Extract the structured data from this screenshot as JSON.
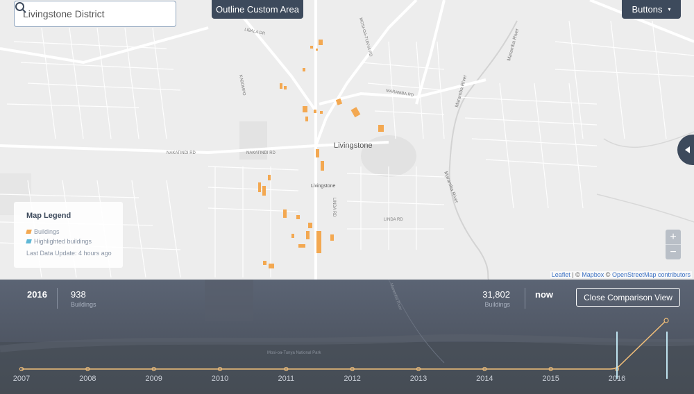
{
  "search": {
    "value": "Livingstone District"
  },
  "toolbar": {
    "outline_label": "Outline Custom Area",
    "layer_label": "Buttons",
    "layer_caret": "▾"
  },
  "map": {
    "place_labels": {
      "livingstone_big": "Livingstone",
      "livingstone_small": "Livingstone",
      "libala": "LIBALA DR",
      "mosi": "MOSI-OA-TUNYA RD",
      "maramba_rd": "MARAMBA RD",
      "maramba_river_top": "Maramba River",
      "maramba_river_mid": "Maramba River",
      "maramba_river_low": "Maramba River",
      "nakatindi_1": "NAKATINDI RD",
      "nakatindi_2": "NAKATINDI RD",
      "kabompo": "KABOMPO",
      "linda_rd_1": "LINDA RD",
      "linda_rd_2": "LINDA RD"
    },
    "colors": {
      "building": "#f3a851",
      "highlight": "#5fb7d6",
      "road": "#ffffff",
      "land": "#ededed"
    }
  },
  "legend": {
    "title": "Map Legend",
    "items": [
      {
        "label": "Buildings",
        "color": "#f3a851"
      },
      {
        "label": "Highlighted buildings",
        "color": "#5fb7d6"
      }
    ],
    "update": "Last Data Update: 4 hours ago"
  },
  "zoom": {
    "in": "+",
    "out": "−"
  },
  "attribution": {
    "leaflet": "Leaflet",
    "sep1": " | © ",
    "mapbox": "Mapbox",
    "sep2": " © ",
    "osm": "OpenStreetMap contributors"
  },
  "comparison": {
    "left_year": "2016",
    "left_count": "938",
    "left_unit": "Buildings",
    "right_count": "31,802",
    "right_unit": "Buildings",
    "right_label": "now",
    "close_label": "Close Comparison View"
  },
  "timeline": {
    "years": [
      "2007",
      "2008",
      "2009",
      "2010",
      "2011",
      "2012",
      "2013",
      "2014",
      "2015",
      "2016"
    ],
    "line_color": "#f3c07a",
    "marker_color": "#bfe3ef",
    "background_labels": {
      "park": "Mosi-oa-Tunya National Park",
      "river": "Maramba River"
    }
  }
}
